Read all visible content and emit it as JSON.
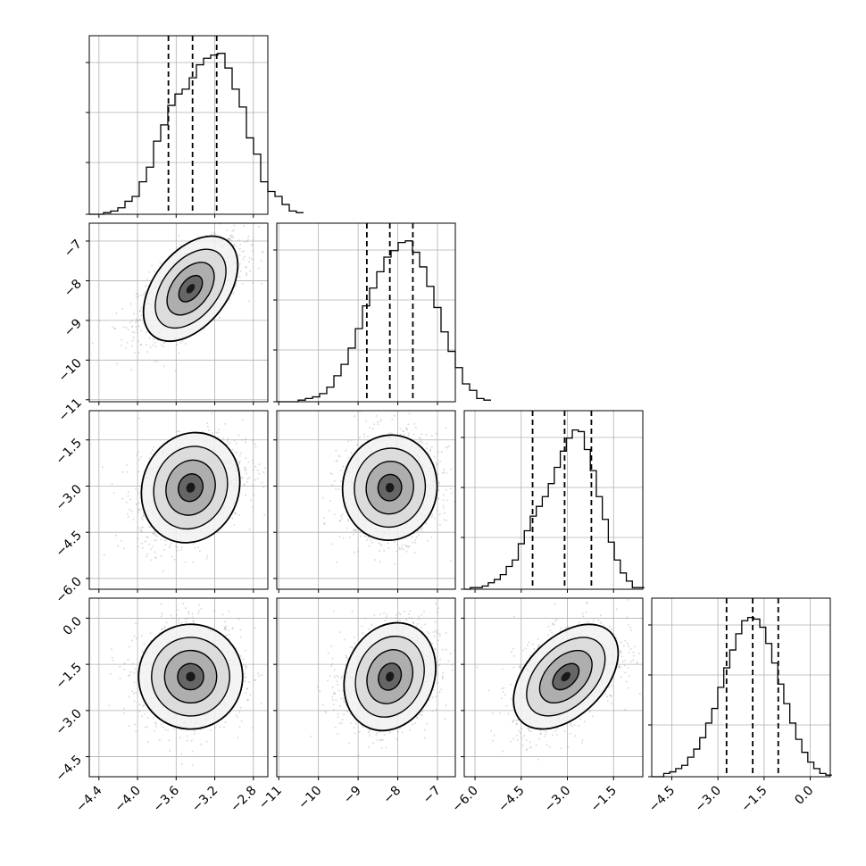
{
  "chart_data": {
    "type": "corner",
    "grid": true,
    "colors": {
      "hist": "#000000",
      "points": "#9a9a9a",
      "contour": "#000000",
      "grid": "#b0b0b0"
    },
    "params": [
      {
        "range": [
          -4.5,
          -2.65
        ],
        "ticks": [
          "-4.4",
          "-4.0",
          "-3.6",
          "-3.2",
          "-2.8"
        ],
        "tick_values": [
          -4.4,
          -4.0,
          -3.6,
          -3.2,
          -2.8
        ],
        "quantiles": [
          -3.68,
          -3.43,
          -3.18
        ]
      },
      {
        "range": [
          -11.05,
          -6.55
        ],
        "ticks": [
          "-11",
          "-10",
          "-9",
          "-8",
          "-7"
        ],
        "tick_values": [
          -11,
          -10,
          -9,
          -8,
          -7
        ],
        "quantiles": [
          -8.78,
          -8.2,
          -7.62
        ]
      },
      {
        "range": [
          -6.35,
          -0.55
        ],
        "ticks": [
          "-6.0",
          "-4.5",
          "-3.0",
          "-1.5"
        ],
        "tick_values": [
          -6.0,
          -4.5,
          -3.0,
          -1.5
        ],
        "quantiles": [
          -4.13,
          -3.09,
          -2.22
        ]
      },
      {
        "range": [
          -5.15,
          0.65
        ],
        "ticks": [
          "-4.5",
          "-3.0",
          "-1.5",
          "0.0"
        ],
        "tick_values": [
          -4.5,
          -3.0,
          -1.5,
          0.0
        ],
        "quantiles": [
          -2.72,
          -1.87,
          -1.04
        ]
      }
    ],
    "histograms": [
      {
        "bin_start": -4.5,
        "bin_width": 0.074,
        "counts": [
          0,
          0,
          0.01,
          0.02,
          0.04,
          0.08,
          0.11,
          0.2,
          0.29,
          0.45,
          0.55,
          0.67,
          0.74,
          0.77,
          0.84,
          0.92,
          0.96,
          0.98,
          0.99,
          0.9,
          0.77,
          0.66,
          0.47,
          0.37,
          0.2,
          0.14,
          0.11,
          0.06,
          0.02,
          0.01
        ]
      },
      {
        "bin_start": -11.05,
        "bin_width": 0.18,
        "counts": [
          0,
          0,
          0,
          0.01,
          0.02,
          0.03,
          0.05,
          0.09,
          0.16,
          0.23,
          0.33,
          0.45,
          0.59,
          0.7,
          0.8,
          0.89,
          0.93,
          0.98,
          0.99,
          0.92,
          0.83,
          0.71,
          0.58,
          0.43,
          0.31,
          0.21,
          0.11,
          0.07,
          0.02,
          0.01
        ]
      },
      {
        "bin_start": -6.35,
        "bin_width": 0.195,
        "counts": [
          0,
          0.01,
          0.01,
          0.02,
          0.04,
          0.06,
          0.09,
          0.14,
          0.18,
          0.28,
          0.36,
          0.45,
          0.51,
          0.57,
          0.65,
          0.75,
          0.85,
          0.93,
          0.98,
          0.97,
          0.86,
          0.73,
          0.57,
          0.43,
          0.29,
          0.18,
          0.1,
          0.05,
          0.01,
          0.01
        ]
      },
      {
        "bin_start": -5.15,
        "bin_width": 0.195,
        "counts": [
          0,
          0,
          0.02,
          0.03,
          0.05,
          0.07,
          0.12,
          0.17,
          0.24,
          0.33,
          0.42,
          0.55,
          0.67,
          0.78,
          0.88,
          0.96,
          0.98,
          0.97,
          0.92,
          0.82,
          0.7,
          0.57,
          0.45,
          0.33,
          0.23,
          0.15,
          0.09,
          0.05,
          0.02,
          0.01
        ]
      }
    ],
    "pairs": [
      {
        "x": 0,
        "y": 1,
        "mean": [
          -3.45,
          -8.2
        ],
        "sd": [
          0.27,
          0.6
        ],
        "rho": 0.64
      },
      {
        "x": 0,
        "y": 2,
        "mean": [
          -3.45,
          -3.05
        ],
        "sd": [
          0.27,
          0.85
        ],
        "rho": 0.35
      },
      {
        "x": 1,
        "y": 2,
        "mean": [
          -8.2,
          -3.05
        ],
        "sd": [
          0.6,
          0.85
        ],
        "rho": 0.08
      },
      {
        "x": 0,
        "y": 3,
        "mean": [
          -3.45,
          -1.9
        ],
        "sd": [
          0.27,
          0.85
        ],
        "rho": 0.05
      },
      {
        "x": 1,
        "y": 3,
        "mean": [
          -8.2,
          -1.9
        ],
        "sd": [
          0.6,
          0.85
        ],
        "rho": 0.25
      },
      {
        "x": 2,
        "y": 3,
        "mean": [
          -3.05,
          -1.9
        ],
        "sd": [
          0.85,
          0.85
        ],
        "rho": 0.45
      }
    ]
  }
}
